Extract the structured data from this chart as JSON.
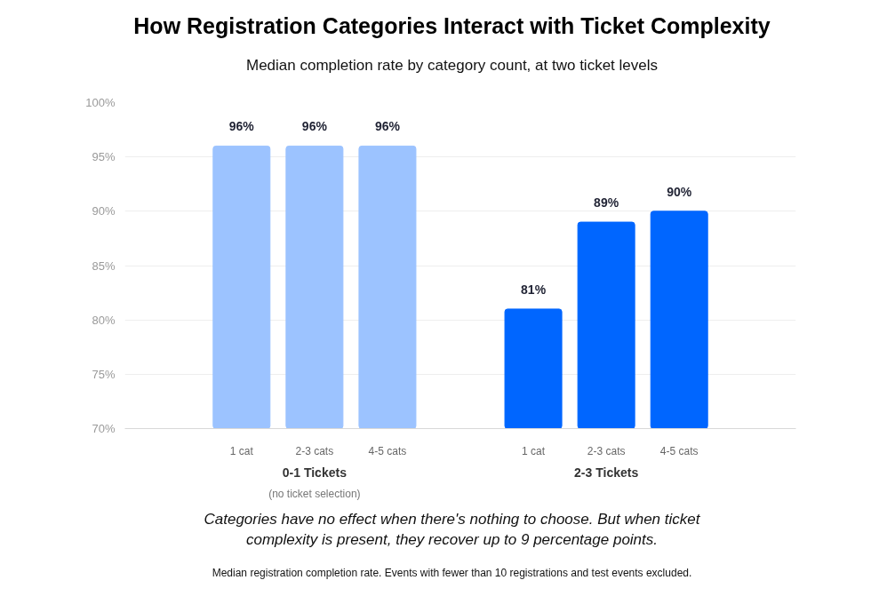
{
  "chart_data": {
    "type": "bar",
    "title": "How Registration Categories Interact with Ticket Complexity",
    "subtitle": "Median completion rate by category count, at two ticket levels",
    "categories": [
      "1 cat",
      "2-3 cats",
      "4-5 cats",
      "1 cat",
      "2-3 cats",
      "4-5 cats"
    ],
    "series": [
      {
        "name": "0-1 Tickets",
        "color": "#9cc3ff",
        "values": [
          96,
          96,
          96,
          null,
          null,
          null
        ],
        "value_labels": [
          "96%",
          "96%",
          "96%",
          null,
          null,
          null
        ]
      },
      {
        "name": "2-3 Tickets",
        "color": "#0066ff",
        "values": [
          null,
          null,
          null,
          81,
          89,
          90
        ],
        "value_labels": [
          null,
          null,
          null,
          "81%",
          "89%",
          "90%"
        ]
      }
    ],
    "ylim": [
      70,
      100
    ],
    "yticks": [
      {
        "value": 70,
        "label": "70%"
      },
      {
        "value": 75,
        "label": "75%"
      },
      {
        "value": 80,
        "label": "80%"
      },
      {
        "value": 85,
        "label": "85%"
      },
      {
        "value": 90,
        "label": "90%"
      },
      {
        "value": 95,
        "label": "95%"
      },
      {
        "value": 100,
        "label": "100%"
      }
    ],
    "grid": "y",
    "annotations": [
      "(no ticket selection)",
      "Categories have no effect when there's nothing to choose. But when ticket complexity is present, they recover up to 9 percentage points.",
      "Median registration completion rate. Events with fewer than 10 registrations and test events excluded."
    ]
  }
}
